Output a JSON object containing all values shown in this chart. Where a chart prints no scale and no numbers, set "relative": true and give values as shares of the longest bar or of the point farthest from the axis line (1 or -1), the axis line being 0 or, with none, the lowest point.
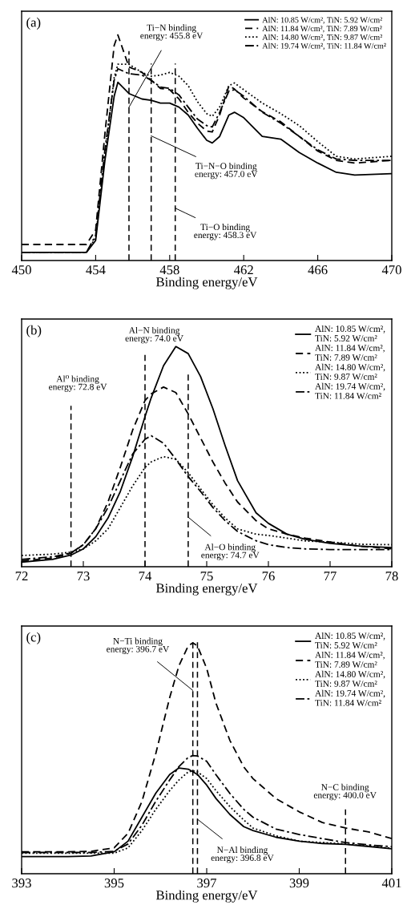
{
  "chart_data": [
    {
      "type": "line",
      "title": "(a)",
      "xlabel": "Binding energy/eV",
      "relative": true,
      "tick_labels": "x",
      "legend": "top right",
      "x": [
        450,
        453.5,
        454,
        454.5,
        455,
        455.2,
        455.8,
        456.5,
        457,
        457.5,
        458,
        458.5,
        459,
        459.5,
        460,
        460.3,
        460.7,
        461.2,
        461.5,
        462,
        463,
        464,
        465,
        466,
        467,
        468,
        470
      ],
      "xlim": [
        450,
        470
      ],
      "xticks": [
        450,
        454,
        458,
        462,
        466,
        470
      ],
      "series": [
        {
          "name": "AlN: 10.85 W/cm², TiN: 5.92 W/cm²",
          "color": "#000000",
          "line_style": "solid",
          "values": [
            0.036,
            0.036,
            0.089,
            0.444,
            0.728,
            0.79,
            0.74,
            0.716,
            0.71,
            0.698,
            0.698,
            0.68,
            0.645,
            0.586,
            0.533,
            0.521,
            0.55,
            0.645,
            0.657,
            0.633,
            0.55,
            0.538,
            0.479,
            0.432,
            0.391,
            0.379,
            0.385
          ]
        },
        {
          "name": "AlN: 11.84 W/cm², TiN: 7.89 W/cm²",
          "color": "#000000",
          "line_style": "dashed",
          "values": [
            0.071,
            0.071,
            0.136,
            0.562,
            0.953,
            1.0,
            0.858,
            0.834,
            0.799,
            0.763,
            0.757,
            0.716,
            0.657,
            0.609,
            0.574,
            0.57,
            0.645,
            0.775,
            0.76,
            0.72,
            0.66,
            0.615,
            0.55,
            0.485,
            0.444,
            0.432,
            0.444
          ]
        },
        {
          "name": "AlN: 14.80 W/cm², TiN: 9.87 W/cm²",
          "color": "#000000",
          "line_style": "dotted",
          "values": [
            0.036,
            0.036,
            0.101,
            0.467,
            0.811,
            0.87,
            0.87,
            0.834,
            0.817,
            0.822,
            0.834,
            0.817,
            0.775,
            0.704,
            0.651,
            0.639,
            0.68,
            0.775,
            0.787,
            0.757,
            0.698,
            0.651,
            0.598,
            0.527,
            0.462,
            0.45,
            0.462
          ]
        },
        {
          "name": "AlN: 19.74 W/cm², TiN: 11.84 W/cm²",
          "color": "#000000",
          "line_style": "dashdot",
          "values": [
            0.036,
            0.036,
            0.112,
            0.491,
            0.799,
            0.85,
            0.828,
            0.822,
            0.799,
            0.769,
            0.763,
            0.734,
            0.68,
            0.627,
            0.598,
            0.592,
            0.657,
            0.751,
            0.757,
            0.728,
            0.657,
            0.609,
            0.55,
            0.491,
            0.45,
            0.444,
            0.444
          ]
        }
      ],
      "ref_lines": [
        {
          "axis": "x",
          "value": 455.8,
          "label": "Ti−N binding\nenergy: 455.8 eV",
          "color": "#000000",
          "line_style": "dashed"
        },
        {
          "axis": "x",
          "value": 457.0,
          "label": "Ti−N−O binding\nenergy: 457.0 eV",
          "color": "#000000",
          "line_style": "dashed"
        },
        {
          "axis": "x",
          "value": 458.3,
          "label": "Ti−O binding\nenergy: 458.3 eV",
          "color": "#000000",
          "line_style": "dashed"
        }
      ]
    },
    {
      "type": "line",
      "title": "(b)",
      "xlabel": "Binding energy/eV",
      "relative": true,
      "tick_labels": "x",
      "legend": "top right",
      "x": [
        72,
        72.5,
        72.8,
        73,
        73.2,
        73.4,
        73.6,
        73.8,
        74,
        74.1,
        74.3,
        74.5,
        74.7,
        74.9,
        75.1,
        75.3,
        75.5,
        75.8,
        76,
        76.3,
        76.6,
        77,
        77.5,
        78
      ],
      "xlim": [
        72,
        78
      ],
      "xticks": [
        72,
        73,
        74,
        75,
        76,
        77,
        78
      ],
      "series": [
        {
          "name": "AlN: 10.85 W/cm²,\nTiN: 5.92 W/cm²",
          "color": "#000000",
          "line_style": "solid",
          "values": [
            0.021,
            0.033,
            0.053,
            0.081,
            0.136,
            0.221,
            0.342,
            0.5,
            0.682,
            0.767,
            0.913,
            1.0,
            0.968,
            0.864,
            0.718,
            0.549,
            0.391,
            0.245,
            0.197,
            0.148,
            0.124,
            0.106,
            0.093,
            0.087
          ]
        },
        {
          "name": "AlN: 11.84 W/cm²,\nTiN: 7.89 W/cm²",
          "color": "#000000",
          "line_style": "dashed",
          "values": [
            0.027,
            0.039,
            0.061,
            0.1,
            0.172,
            0.294,
            0.452,
            0.621,
            0.755,
            0.785,
            0.816,
            0.791,
            0.694,
            0.585,
            0.476,
            0.379,
            0.294,
            0.209,
            0.172,
            0.148,
            0.13,
            0.112,
            0.093,
            0.081
          ]
        },
        {
          "name": "AlN: 14.80 W/cm²,\nTiN: 9.87 W/cm²",
          "color": "#000000",
          "line_style": "dotted",
          "values": [
            0.051,
            0.057,
            0.066,
            0.081,
            0.117,
            0.172,
            0.269,
            0.367,
            0.451,
            0.476,
            0.5,
            0.488,
            0.427,
            0.354,
            0.282,
            0.221,
            0.172,
            0.148,
            0.142,
            0.13,
            0.117,
            0.112,
            0.102,
            0.1
          ]
        },
        {
          "name": "AlN: 19.74 W/cm²,\nTiN: 11.84 W/cm²",
          "color": "#000000",
          "line_style": "dashdot",
          "values": [
            0.033,
            0.045,
            0.063,
            0.1,
            0.172,
            0.269,
            0.391,
            0.512,
            0.579,
            0.595,
            0.561,
            0.488,
            0.409,
            0.342,
            0.269,
            0.209,
            0.16,
            0.118,
            0.1,
            0.087,
            0.081,
            0.078,
            0.078,
            0.078
          ]
        }
      ],
      "ref_lines": [
        {
          "axis": "x",
          "value": 72.8,
          "label": "Al⁰ binding\nenergy: 72.8 eV",
          "color": "#000000",
          "line_style": "dashed"
        },
        {
          "axis": "x",
          "value": 74.0,
          "label": "Al−N binding\nenergy: 74.0 eV",
          "color": "#000000",
          "line_style": "dashed"
        },
        {
          "axis": "x",
          "value": 74.7,
          "label": "Al−O binding\nenergy: 74.7 eV",
          "color": "#000000",
          "line_style": "dashed"
        }
      ]
    },
    {
      "type": "line",
      "title": "(c)",
      "xlabel": "Binding energy/eV",
      "relative": true,
      "tick_labels": "x",
      "legend": "top right",
      "x": [
        393,
        394,
        394.5,
        395,
        395.3,
        395.6,
        395.9,
        396.2,
        396.4,
        396.6,
        396.7,
        396.8,
        397,
        397.2,
        397.5,
        397.8,
        398,
        398.5,
        399,
        399.5,
        400,
        400.5,
        401
      ],
      "xlim": [
        393,
        401
      ],
      "xticks": [
        393,
        395,
        397,
        399,
        401
      ],
      "series": [
        {
          "name": "AlN: 10.85 W/cm²,\nTiN: 5.92 W/cm²",
          "color": "#000000",
          "line_style": "solid",
          "values": [
            0.074,
            0.074,
            0.077,
            0.095,
            0.141,
            0.245,
            0.349,
            0.43,
            0.458,
            0.453,
            0.442,
            0.43,
            0.384,
            0.326,
            0.257,
            0.204,
            0.187,
            0.158,
            0.141,
            0.131,
            0.127,
            0.118,
            0.108
          ]
        },
        {
          "name": "AlN: 11.84 W/cm²,\nTiN: 7.89 W/cm²",
          "color": "#000000",
          "line_style": "dashed",
          "values": [
            0.095,
            0.095,
            0.097,
            0.112,
            0.175,
            0.313,
            0.521,
            0.763,
            0.901,
            0.987,
            1.0,
            0.987,
            0.889,
            0.739,
            0.578,
            0.463,
            0.412,
            0.325,
            0.268,
            0.222,
            0.198,
            0.181,
            0.152
          ]
        },
        {
          "name": "AlN: 14.80 W/cm²,\nTiN: 9.87 W/cm²",
          "color": "#000000",
          "line_style": "dotted",
          "values": [
            0.089,
            0.089,
            0.089,
            0.089,
            0.112,
            0.187,
            0.279,
            0.36,
            0.406,
            0.441,
            0.446,
            0.441,
            0.412,
            0.36,
            0.291,
            0.233,
            0.198,
            0.164,
            0.141,
            0.135,
            0.129,
            0.12,
            0.11
          ]
        },
        {
          "name": "AlN: 19.74 W/cm²,\nTiN: 11.84 W/cm²",
          "color": "#000000",
          "line_style": "dashdot",
          "values": [
            0.092,
            0.092,
            0.092,
            0.097,
            0.129,
            0.21,
            0.314,
            0.406,
            0.464,
            0.504,
            0.512,
            0.51,
            0.487,
            0.429,
            0.348,
            0.279,
            0.245,
            0.193,
            0.17,
            0.152,
            0.135,
            0.125,
            0.117
          ]
        }
      ],
      "ref_lines": [
        {
          "axis": "x",
          "value": 396.7,
          "label": "N−Ti binding\nenergy: 396.7 eV",
          "color": "#000000",
          "line_style": "dashed"
        },
        {
          "axis": "x",
          "value": 396.8,
          "label": "N−Al binding\nenergy: 396.8 eV",
          "color": "#000000",
          "line_style": "dashed"
        },
        {
          "axis": "x",
          "value": 400.0,
          "label": "N−C binding\nenergy: 400.0 eV",
          "color": "#000000",
          "line_style": "dashed"
        }
      ]
    }
  ]
}
